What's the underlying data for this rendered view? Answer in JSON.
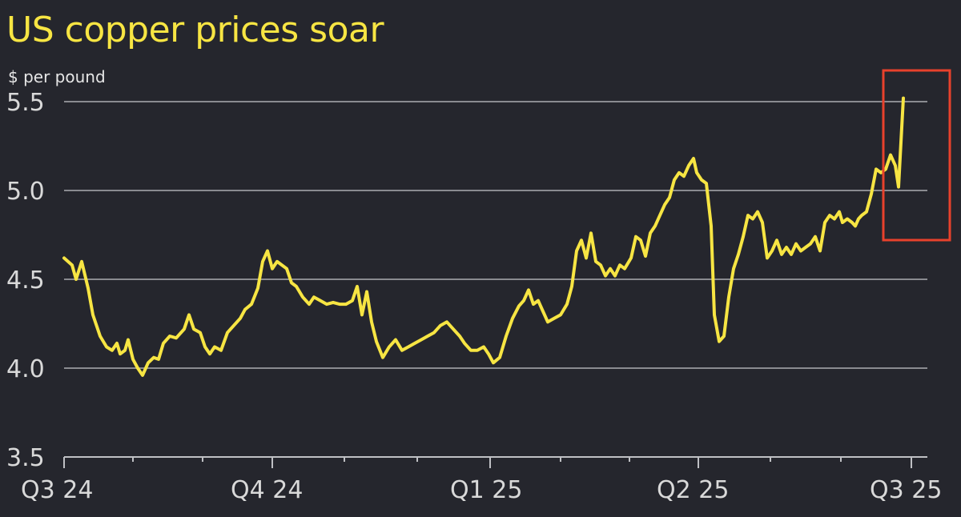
{
  "chart_data": {
    "type": "line",
    "title": "US copper prices soar",
    "ylabel": "$ per pound",
    "xlabel": "",
    "ylim": [
      3.5,
      5.5
    ],
    "yticks": [
      "5.5",
      "5.0",
      "4.5",
      "4.0",
      "3.5"
    ],
    "xticks": [
      "Q3 24",
      "Q4 24",
      "Q1 25",
      "Q2 25",
      "Q3 25"
    ],
    "grid": true,
    "line_color": "#f7e543",
    "highlight_color": "#e8412c",
    "highlight": "box around the final spike at the right edge",
    "series": [
      {
        "values": [
          [
            0.0,
            4.62
          ],
          [
            0.01,
            4.58
          ],
          [
            0.015,
            4.5
          ],
          [
            0.022,
            4.6
          ],
          [
            0.03,
            4.45
          ],
          [
            0.036,
            4.3
          ],
          [
            0.045,
            4.18
          ],
          [
            0.053,
            4.12
          ],
          [
            0.06,
            4.1
          ],
          [
            0.066,
            4.14
          ],
          [
            0.07,
            4.08
          ],
          [
            0.076,
            4.1
          ],
          [
            0.08,
            4.16
          ],
          [
            0.086,
            4.05
          ],
          [
            0.092,
            4.0
          ],
          [
            0.098,
            3.96
          ],
          [
            0.105,
            4.03
          ],
          [
            0.112,
            4.06
          ],
          [
            0.118,
            4.05
          ],
          [
            0.124,
            4.14
          ],
          [
            0.132,
            4.18
          ],
          [
            0.14,
            4.17
          ],
          [
            0.15,
            4.22
          ],
          [
            0.156,
            4.3
          ],
          [
            0.162,
            4.22
          ],
          [
            0.17,
            4.2
          ],
          [
            0.176,
            4.12
          ],
          [
            0.182,
            4.08
          ],
          [
            0.188,
            4.12
          ],
          [
            0.196,
            4.1
          ],
          [
            0.204,
            4.2
          ],
          [
            0.212,
            4.24
          ],
          [
            0.22,
            4.28
          ],
          [
            0.226,
            4.33
          ],
          [
            0.234,
            4.36
          ],
          [
            0.242,
            4.45
          ],
          [
            0.248,
            4.6
          ],
          [
            0.254,
            4.66
          ],
          [
            0.26,
            4.56
          ],
          [
            0.266,
            4.6
          ],
          [
            0.272,
            4.58
          ],
          [
            0.278,
            4.56
          ],
          [
            0.284,
            4.48
          ],
          [
            0.29,
            4.46
          ],
          [
            0.298,
            4.4
          ],
          [
            0.306,
            4.36
          ],
          [
            0.312,
            4.4
          ],
          [
            0.32,
            4.38
          ],
          [
            0.328,
            4.36
          ],
          [
            0.336,
            4.37
          ],
          [
            0.344,
            4.36
          ],
          [
            0.352,
            4.36
          ],
          [
            0.36,
            4.38
          ],
          [
            0.366,
            4.46
          ],
          [
            0.372,
            4.3
          ],
          [
            0.378,
            4.43
          ],
          [
            0.384,
            4.26
          ],
          [
            0.39,
            4.15
          ],
          [
            0.398,
            4.06
          ],
          [
            0.406,
            4.12
          ],
          [
            0.414,
            4.16
          ],
          [
            0.422,
            4.1
          ],
          [
            0.43,
            4.12
          ],
          [
            0.438,
            4.14
          ],
          [
            0.446,
            4.16
          ],
          [
            0.454,
            4.18
          ],
          [
            0.462,
            4.2
          ],
          [
            0.47,
            4.24
          ],
          [
            0.478,
            4.26
          ],
          [
            0.486,
            4.22
          ],
          [
            0.494,
            4.18
          ],
          [
            0.5,
            4.14
          ],
          [
            0.508,
            4.1
          ],
          [
            0.516,
            4.1
          ],
          [
            0.524,
            4.12
          ],
          [
            0.53,
            4.08
          ],
          [
            0.536,
            4.03
          ],
          [
            0.544,
            4.06
          ],
          [
            0.552,
            4.18
          ],
          [
            0.56,
            4.28
          ],
          [
            0.568,
            4.35
          ],
          [
            0.574,
            4.38
          ],
          [
            0.58,
            4.44
          ],
          [
            0.586,
            4.36
          ],
          [
            0.592,
            4.38
          ],
          [
            0.598,
            4.32
          ],
          [
            0.604,
            4.26
          ],
          [
            0.612,
            4.28
          ],
          [
            0.62,
            4.3
          ],
          [
            0.628,
            4.36
          ],
          [
            0.634,
            4.46
          ],
          [
            0.64,
            4.66
          ],
          [
            0.646,
            4.72
          ],
          [
            0.652,
            4.62
          ],
          [
            0.658,
            4.76
          ],
          [
            0.664,
            4.6
          ],
          [
            0.67,
            4.58
          ],
          [
            0.676,
            4.52
          ],
          [
            0.682,
            4.56
          ],
          [
            0.688,
            4.52
          ],
          [
            0.694,
            4.58
          ],
          [
            0.7,
            4.56
          ],
          [
            0.708,
            4.62
          ],
          [
            0.714,
            4.74
          ],
          [
            0.72,
            4.72
          ],
          [
            0.726,
            4.63
          ],
          [
            0.732,
            4.76
          ],
          [
            0.738,
            4.8
          ],
          [
            0.744,
            4.86
          ],
          [
            0.75,
            4.92
          ],
          [
            0.756,
            4.96
          ],
          [
            0.762,
            5.06
          ],
          [
            0.768,
            5.1
          ],
          [
            0.774,
            5.08
          ],
          [
            0.78,
            5.14
          ],
          [
            0.786,
            5.18
          ],
          [
            0.79,
            5.1
          ],
          [
            0.796,
            5.06
          ],
          [
            0.802,
            5.04
          ],
          [
            0.808,
            4.8
          ],
          [
            0.812,
            4.3
          ],
          [
            0.818,
            4.15
          ],
          [
            0.824,
            4.18
          ],
          [
            0.83,
            4.4
          ],
          [
            0.836,
            4.56
          ],
          [
            0.842,
            4.64
          ],
          [
            0.848,
            4.74
          ],
          [
            0.854,
            4.86
          ],
          [
            0.86,
            4.84
          ],
          [
            0.866,
            4.88
          ],
          [
            0.872,
            4.82
          ],
          [
            0.878,
            4.62
          ],
          [
            0.884,
            4.66
          ],
          [
            0.89,
            4.72
          ],
          [
            0.896,
            4.64
          ],
          [
            0.902,
            4.68
          ],
          [
            0.908,
            4.64
          ],
          [
            0.914,
            4.7
          ],
          [
            0.92,
            4.66
          ],
          [
            0.926,
            4.68
          ],
          [
            0.932,
            4.7
          ],
          [
            0.938,
            4.74
          ],
          [
            0.944,
            4.66
          ],
          [
            0.95,
            4.82
          ],
          [
            0.956,
            4.86
          ],
          [
            0.962,
            4.84
          ],
          [
            0.968,
            4.88
          ],
          [
            0.972,
            4.82
          ],
          [
            0.978,
            4.84
          ],
          [
            0.984,
            4.82
          ],
          [
            0.988,
            4.8
          ],
          [
            0.992,
            4.84
          ],
          [
            0.996,
            4.86
          ],
          [
            1.002,
            4.88
          ],
          [
            1.008,
            4.98
          ],
          [
            1.014,
            5.12
          ],
          [
            1.02,
            5.1
          ],
          [
            1.026,
            5.12
          ],
          [
            1.032,
            5.2
          ],
          [
            1.038,
            5.14
          ],
          [
            1.042,
            5.02
          ],
          [
            1.048,
            5.52
          ]
        ]
      }
    ]
  }
}
